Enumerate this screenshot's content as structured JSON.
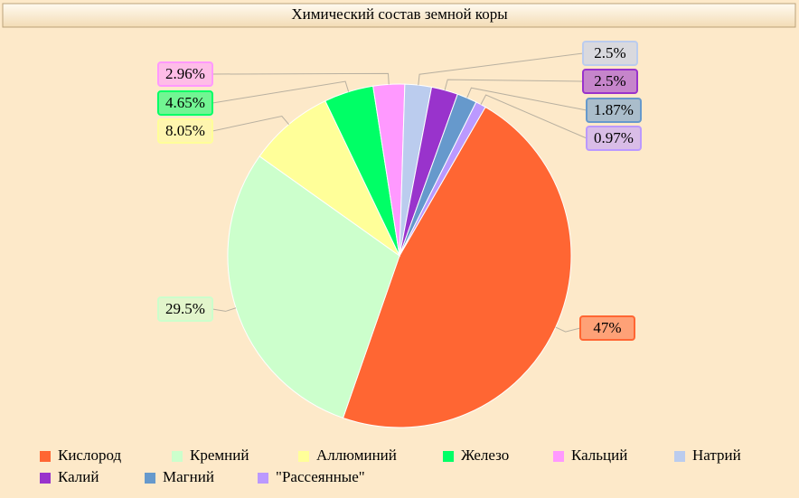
{
  "chart_data": {
    "type": "pie",
    "title": "Химический состав земной коры",
    "categories": [
      "Кислород",
      "Кремний",
      "Аллюминий",
      "Железо",
      "Кальций",
      "Натрий",
      "Калий",
      "Магний",
      "\"Рассеянные\""
    ],
    "values": [
      47,
      29.5,
      8.05,
      4.65,
      2.96,
      2.5,
      2.5,
      1.87,
      0.97
    ],
    "value_labels": [
      "47%",
      "29.5%",
      "8.05%",
      "4.65%",
      "2.96%",
      "2.5%",
      "2.5%",
      "1.87%",
      "0.97%"
    ],
    "colors": [
      "#ff6633",
      "#ccffcc",
      "#ffff99",
      "#00ff66",
      "#ff99ff",
      "#bbccee",
      "#9933cc",
      "#6699cc",
      "#bb99ff"
    ]
  }
}
